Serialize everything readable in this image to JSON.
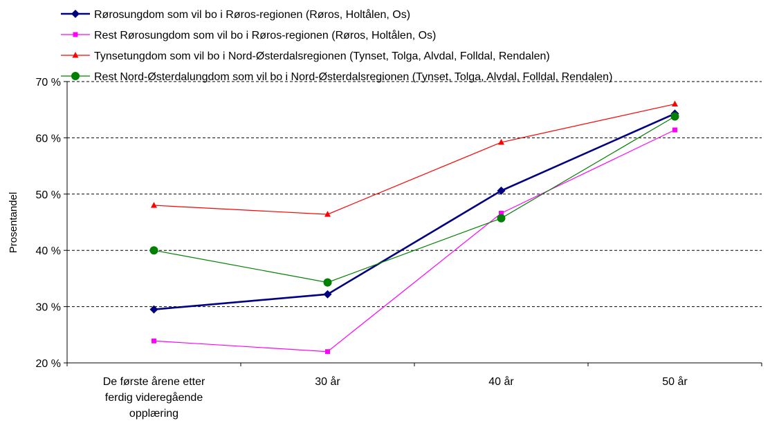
{
  "chart_data": {
    "type": "line",
    "title": "",
    "xlabel": "",
    "ylabel": "Prosentandel",
    "ylim": [
      20,
      70
    ],
    "yticks": [
      20,
      30,
      40,
      50,
      60,
      70
    ],
    "ytick_labels": [
      "20 %",
      "30 %",
      "40 %",
      "50 %",
      "60 %",
      "70 %"
    ],
    "grid": "horizontal dashed",
    "legend_position": "top",
    "categories": [
      [
        "De første årene etter",
        "ferdig videregående",
        "opplæring"
      ],
      [
        "30 år"
      ],
      [
        "40 år"
      ],
      [
        "50 år"
      ]
    ],
    "series": [
      {
        "name": "Rørosungdom som vil bo i Røros-regionen (Røros, Holtålen, Os)",
        "values": [
          29.5,
          32.2,
          50.6,
          64.3
        ],
        "color": "#000080",
        "marker": "diamond",
        "width": "thick"
      },
      {
        "name": "Rest Rørosungdom som vil bo i Røros-regionen (Røros, Holtålen, Os)",
        "values": [
          23.9,
          22.0,
          46.6,
          61.4
        ],
        "color": "#ff00ff",
        "marker": "square",
        "width": "thin"
      },
      {
        "name": "Tynsetungdom som vil bo i Nord-Østerdalsregionen (Tynset, Tolga, Alvdal, Folldal, Rendalen)",
        "values": [
          48.0,
          46.4,
          59.2,
          66.0
        ],
        "color": "#ff0000",
        "marker": "triangle",
        "width": "thin"
      },
      {
        "name": "Rest Nord-Østerdalungdom som vil bo i Nord-Østerdalsregionen (Tynset, Tolga, Alvdal, Folldal, Rendalen)",
        "values": [
          40.0,
          34.3,
          45.7,
          63.8
        ],
        "color": "#008000",
        "marker": "circle",
        "width": "thin"
      }
    ]
  }
}
